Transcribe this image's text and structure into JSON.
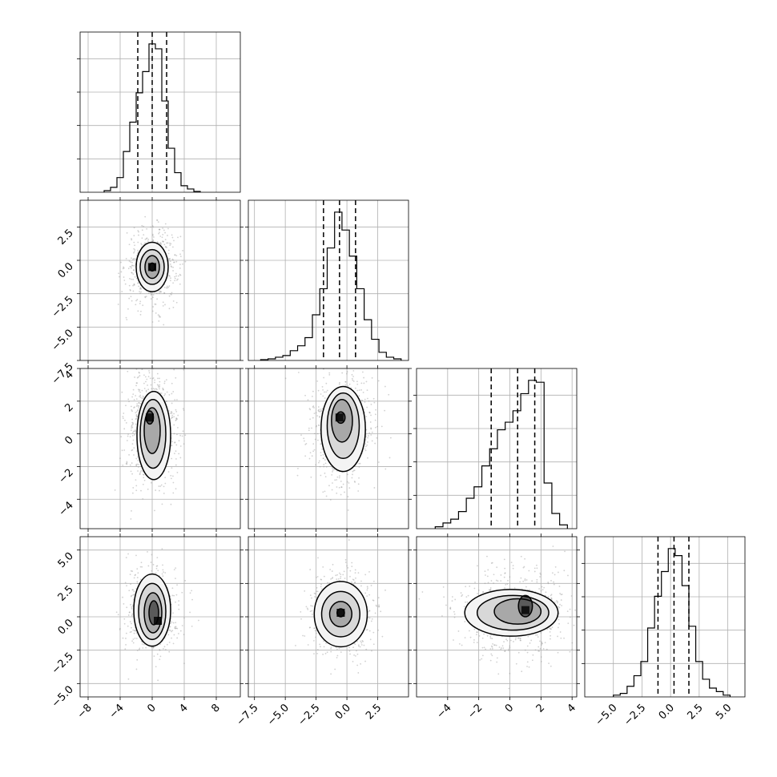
{
  "chart_data": {
    "type": "corner",
    "variables": 4,
    "grid": true,
    "diagonal": [
      {
        "index": 0,
        "type": "histogram",
        "xlim": [
          -9,
          11
        ],
        "bins": [
          -6.0,
          -5.2,
          -4.4,
          -3.6,
          -2.8,
          -2.0,
          -1.2,
          -0.4,
          0.4,
          1.2,
          2.0,
          2.8,
          3.6,
          4.4,
          5.2,
          6.0
        ],
        "counts": [
          0.01,
          0.03,
          0.09,
          0.25,
          0.43,
          0.61,
          0.74,
          0.91,
          0.88,
          0.56,
          0.27,
          0.12,
          0.04,
          0.02,
          0.005
        ],
        "quantiles": [
          -1.8,
          0.0,
          1.8
        ]
      },
      {
        "index": 1,
        "type": "histogram",
        "xlim": [
          -8.0,
          5.0
        ],
        "bins": [
          -7.0,
          -6.4,
          -5.8,
          -5.2,
          -4.6,
          -4.0,
          -3.4,
          -2.8,
          -2.2,
          -1.6,
          -1.0,
          -0.4,
          0.2,
          0.8,
          1.4,
          2.0,
          2.6,
          3.2,
          3.8,
          4.4
        ],
        "counts": [
          0.005,
          0.01,
          0.02,
          0.03,
          0.06,
          0.09,
          0.14,
          0.28,
          0.44,
          0.69,
          0.91,
          0.8,
          0.64,
          0.44,
          0.25,
          0.13,
          0.05,
          0.02,
          0.01
        ],
        "quantiles": [
          -1.9,
          -0.6,
          0.7
        ]
      },
      {
        "index": 2,
        "type": "histogram",
        "xlim": [
          -6.0,
          4.3
        ],
        "bins": [
          -4.8,
          -4.3,
          -3.8,
          -3.3,
          -2.8,
          -2.3,
          -1.8,
          -1.3,
          -0.8,
          -0.3,
          0.2,
          0.7,
          1.2,
          1.7,
          2.2,
          2.7,
          3.2,
          3.7
        ],
        "counts": [
          0.01,
          0.03,
          0.05,
          0.09,
          0.16,
          0.22,
          0.33,
          0.42,
          0.52,
          0.56,
          0.62,
          0.71,
          0.78,
          0.77,
          0.24,
          0.08,
          0.02
        ],
        "quantiles": [
          -1.2,
          0.5,
          1.6
        ]
      },
      {
        "index": 3,
        "type": "histogram",
        "xlim": [
          -7.5,
          6.5
        ],
        "bins": [
          -5.0,
          -4.4,
          -3.8,
          -3.2,
          -2.6,
          -2.0,
          -1.4,
          -0.8,
          -0.2,
          0.4,
          1.0,
          1.6,
          2.2,
          2.8,
          3.4,
          4.0,
          4.6,
          5.2
        ],
        "counts": [
          0.01,
          0.02,
          0.06,
          0.12,
          0.2,
          0.39,
          0.57,
          0.71,
          0.84,
          0.8,
          0.63,
          0.4,
          0.2,
          0.1,
          0.05,
          0.03,
          0.01
        ],
        "quantiles": [
          -1.1,
          0.3,
          1.6
        ]
      }
    ],
    "off_diagonal": [
      {
        "x_index": 0,
        "y_index": 1,
        "type": "hist2d",
        "mean": [
          0,
          -0.5
        ],
        "std": [
          1.3,
          1.1
        ],
        "peak": [
          0,
          -0.5
        ],
        "contours": [
          [
            0,
            -0.5,
            0.35,
            0.3
          ],
          [
            0,
            -0.5,
            0.9,
            0.85
          ],
          [
            0,
            -0.5,
            1.5,
            1.3
          ],
          [
            0,
            -0.5,
            2.0,
            1.85
          ]
        ]
      },
      {
        "x_index": 0,
        "y_index": 2,
        "type": "hist2d",
        "mean": [
          0,
          0.3
        ],
        "std": [
          1.3,
          1.5
        ],
        "peak": [
          -0.3,
          1.0
        ],
        "contours": [
          [
            -0.3,
            1.0,
            0.45,
            0.4
          ],
          [
            0,
            0.2,
            1.0,
            1.4
          ],
          [
            0.1,
            0.0,
            1.6,
            2.1
          ],
          [
            0.2,
            -0.1,
            2.1,
            2.7
          ]
        ]
      },
      {
        "x_index": 1,
        "y_index": 2,
        "type": "hist2d",
        "mean": [
          -0.5,
          0.3
        ],
        "std": [
          1.1,
          1.4
        ],
        "peak": [
          -0.6,
          1.0
        ],
        "contours": [
          [
            -0.5,
            1.0,
            0.35,
            0.35
          ],
          [
            -0.4,
            0.8,
            0.85,
            1.3
          ],
          [
            -0.3,
            0.5,
            1.3,
            2.0
          ],
          [
            -0.3,
            0.3,
            1.8,
            2.6
          ]
        ]
      },
      {
        "x_index": 0,
        "y_index": 3,
        "type": "hist2d",
        "mean": [
          0,
          0.4
        ],
        "std": [
          1.3,
          1.3
        ],
        "peak": [
          0.7,
          -0.3
        ],
        "contours": [
          [
            0.2,
            0.3,
            0.6,
            0.9
          ],
          [
            0.1,
            0.3,
            1.1,
            1.5
          ],
          [
            0.0,
            0.4,
            1.7,
            2.1
          ],
          [
            0.0,
            0.5,
            2.3,
            2.7
          ]
        ]
      },
      {
        "x_index": 1,
        "y_index": 3,
        "type": "hist2d",
        "mean": [
          -0.5,
          0.3
        ],
        "std": [
          1.1,
          1.3
        ],
        "peak": [
          -0.5,
          0.3
        ],
        "contours": [
          [
            -0.5,
            0.3,
            0.3,
            0.3
          ],
          [
            -0.5,
            0.2,
            0.9,
            0.95
          ],
          [
            -0.5,
            0.2,
            1.55,
            1.7
          ],
          [
            -0.5,
            0.2,
            2.15,
            2.45
          ]
        ]
      },
      {
        "x_index": 2,
        "y_index": 3,
        "type": "hist2d",
        "mean": [
          0.3,
          0.3
        ],
        "std": [
          1.5,
          1.3
        ],
        "peak": [
          1.0,
          0.5
        ],
        "contours": [
          [
            1.0,
            0.8,
            0.45,
            0.8
          ],
          [
            0.5,
            0.4,
            1.5,
            0.95
          ],
          [
            0.2,
            0.3,
            2.3,
            1.3
          ],
          [
            0.1,
            0.3,
            3.0,
            1.75
          ]
        ]
      }
    ],
    "axes": {
      "x_bottom": [
        {
          "xlim": [
            -9,
            11
          ],
          "ticks": [
            -8,
            -4,
            0,
            4,
            8
          ],
          "tick_labels": [
            "−8",
            "−4",
            "0",
            "4",
            "8"
          ]
        },
        {
          "xlim": [
            -8.0,
            5.0
          ],
          "ticks": [
            -7.5,
            -5.0,
            -2.5,
            0.0,
            2.5
          ],
          "tick_labels": [
            "−7.5",
            "−5.0",
            "−2.5",
            "0.0",
            "2.5"
          ]
        },
        {
          "xlim": [
            -6.0,
            4.3
          ],
          "ticks": [
            -4,
            -2,
            0,
            2,
            4
          ],
          "tick_labels": [
            "−4",
            "−2",
            "0",
            "2",
            "4"
          ]
        },
        {
          "xlim": [
            -7.5,
            6.5
          ],
          "ticks": [
            -5.0,
            -2.5,
            0.0,
            2.5,
            5.0
          ],
          "tick_labels": [
            "−5.0",
            "−2.5",
            "0.0",
            "2.5",
            "5.0"
          ]
        }
      ],
      "y_left": [
        null,
        {
          "ylim": [
            -7.5,
            4.5
          ],
          "ticks": [
            2.5,
            0.0,
            -2.5,
            -5.0,
            -7.5
          ],
          "tick_labels": [
            "2.5",
            "0.0",
            "−2.5",
            "−5.0",
            "−7.5"
          ]
        },
        {
          "ylim": [
            -5.8,
            4.0
          ],
          "ticks": [
            4,
            2,
            0,
            -2,
            -4
          ],
          "tick_labels": [
            "4",
            "2",
            "0",
            "−2",
            "−4"
          ]
        },
        {
          "ylim": [
            -6.0,
            6.0
          ],
          "ticks": [
            5.0,
            2.5,
            0.0,
            -2.5,
            -5.0
          ],
          "tick_labels": [
            "5.0",
            "2.5",
            "0.0",
            "−2.5",
            "−5.0"
          ]
        }
      ]
    }
  }
}
